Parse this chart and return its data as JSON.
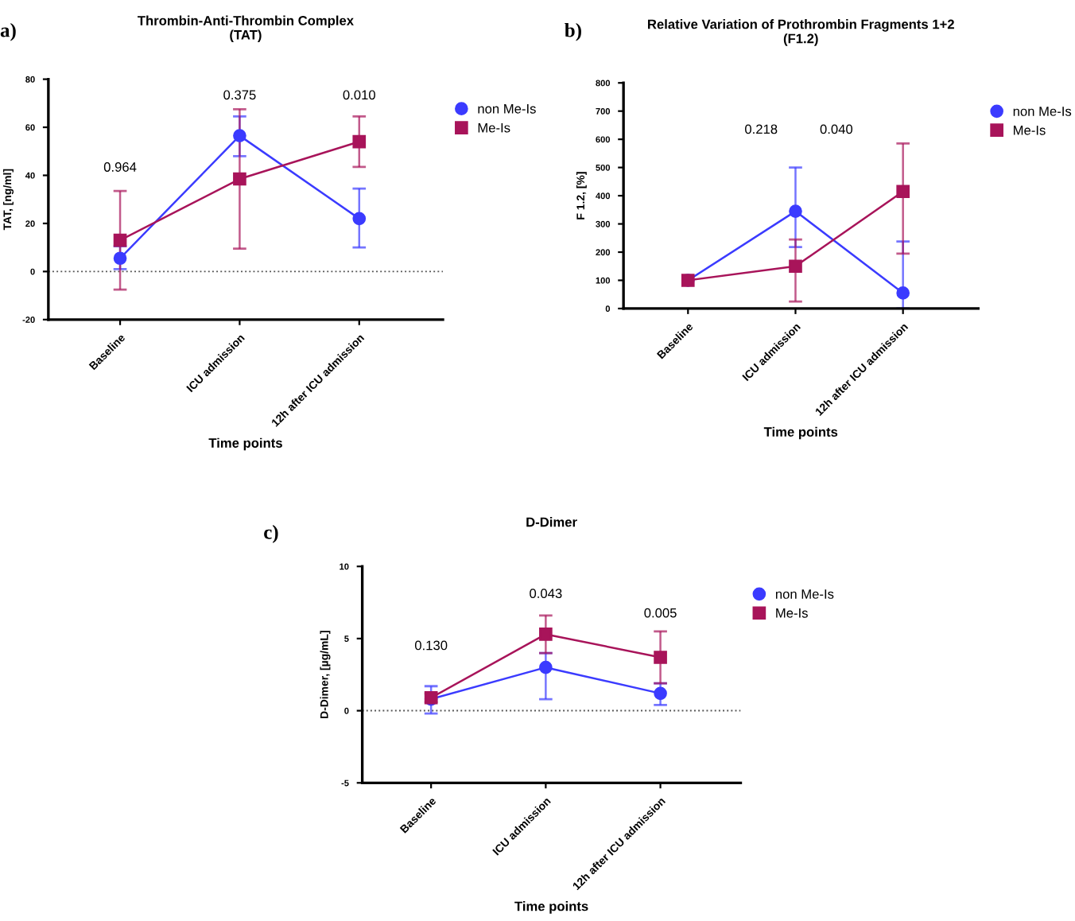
{
  "chart_data": [
    {
      "type": "line",
      "title": "Thrombin-Anti-Thrombin Complex\n(TAT)",
      "xlabel": "Time points",
      "ylabel": "TAT, [ng/ml]",
      "categories": [
        "Baseline",
        "ICU admission",
        "12h after ICU admission"
      ],
      "series": [
        {
          "name": "non Me-Is",
          "color": "#3b3bff",
          "marker": "circle",
          "values": [
            5.5,
            56.5,
            22
          ],
          "errors": [
            [
              1,
              10.5
            ],
            [
              48,
              64.5
            ],
            [
              10,
              34.5
            ]
          ]
        },
        {
          "name": "Me-Is",
          "color": "#a8145a",
          "marker": "square",
          "values": [
            13,
            38.5,
            54
          ],
          "errors": [
            [
              -7.5,
              33.5
            ],
            [
              9.5,
              67.5
            ],
            [
              43.5,
              64.5
            ]
          ]
        }
      ],
      "ylim": [
        -20,
        80
      ],
      "yticks": [
        -20,
        0,
        20,
        40,
        60,
        80
      ],
      "ref_lines": [
        {
          "axis": "y",
          "value": 0,
          "line_style": "dotted",
          "color": "#555555"
        }
      ],
      "annotations": [
        "a)",
        "0.964",
        "0.375",
        "0.010"
      ],
      "legend": "top right",
      "grid": false
    },
    {
      "type": "line",
      "title": "Relative Variation of Prothrombin Fragments 1+2\n(F1.2)",
      "xlabel": "Time points",
      "ylabel": "F 1.2, [%]",
      "categories": [
        "Baseline",
        "ICU admission",
        "12h after ICU admission"
      ],
      "series": [
        {
          "name": "non Me-Is",
          "color": "#3b3bff",
          "marker": "circle",
          "values": [
            100,
            345,
            55
          ],
          "errors": [
            null,
            [
              218,
              500
            ],
            [
              0,
              238
            ]
          ]
        },
        {
          "name": "Me-Is",
          "color": "#a8145a",
          "marker": "square",
          "values": [
            100,
            150,
            415
          ],
          "errors": [
            null,
            [
              25,
              245
            ],
            [
              195,
              585
            ]
          ]
        }
      ],
      "ylim": [
        0,
        800
      ],
      "yticks": [
        0,
        100,
        200,
        300,
        400,
        500,
        600,
        700,
        800
      ],
      "annotations": [
        "b)",
        "0.218",
        "0.040"
      ],
      "legend": "top right",
      "grid": false
    },
    {
      "type": "line",
      "title": "D-Dimer",
      "xlabel": "Time points",
      "ylabel": "D-Dimer, [µg/mL]",
      "categories": [
        "Baseline",
        "ICU admission",
        "12h after ICU admission"
      ],
      "series": [
        {
          "name": "non Me-Is",
          "color": "#3b3bff",
          "marker": "circle",
          "values": [
            0.8,
            3.0,
            1.2
          ],
          "errors": [
            [
              -0.2,
              1.7
            ],
            [
              0.8,
              4.0
            ],
            [
              0.4,
              1.9
            ]
          ]
        },
        {
          "name": "Me-Is",
          "color": "#a8145a",
          "marker": "square",
          "values": [
            0.9,
            5.3,
            3.7
          ],
          "errors": [
            [
              0.6,
              1.2
            ],
            [
              4.0,
              6.6
            ],
            [
              1.9,
              5.5
            ]
          ]
        }
      ],
      "ylim": [
        -5,
        10
      ],
      "yticks": [
        -5,
        0,
        5,
        10
      ],
      "ref_lines": [
        {
          "axis": "y",
          "value": 0,
          "line_style": "dotted",
          "color": "#555555"
        }
      ],
      "annotations": [
        "c)",
        "0.130",
        "0.043",
        "0.005"
      ],
      "legend": "top right",
      "grid": false
    }
  ]
}
